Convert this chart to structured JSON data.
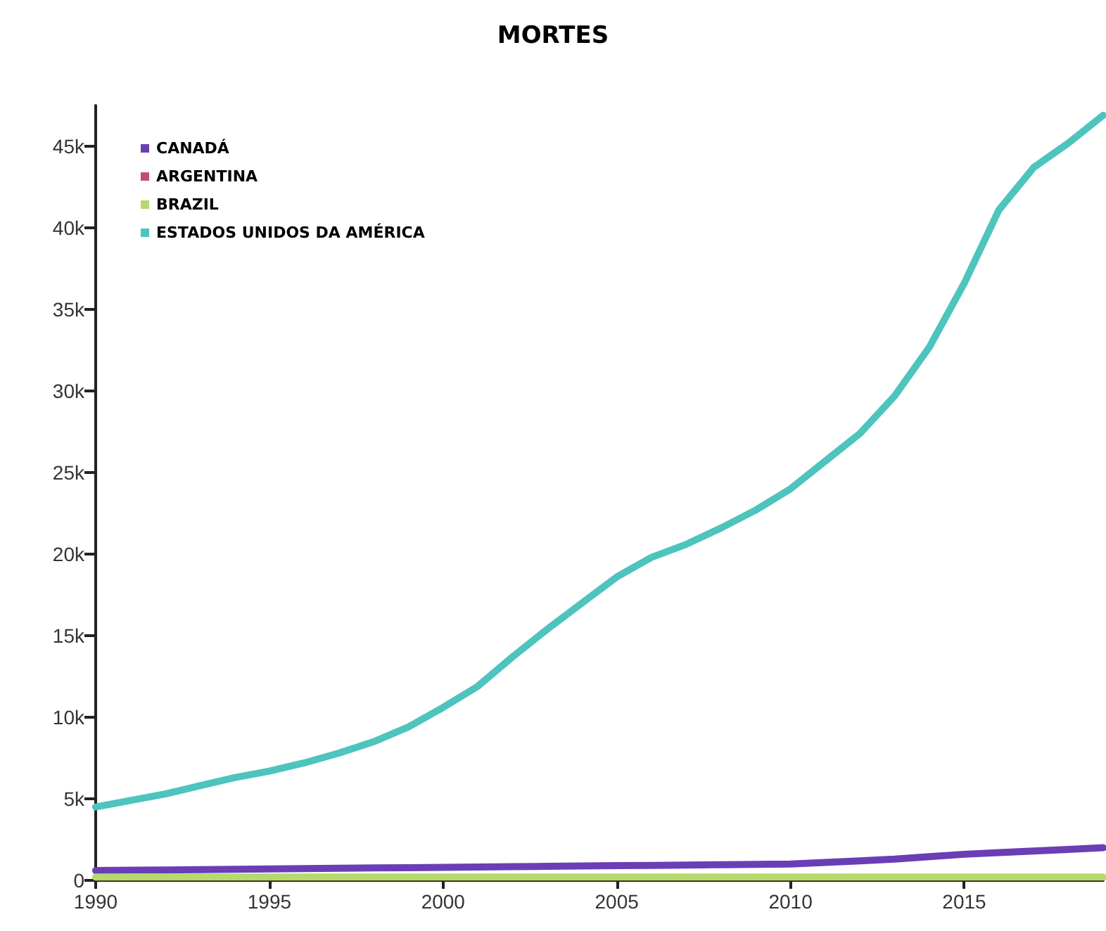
{
  "chart_data": {
    "type": "line",
    "title": "MORTES",
    "x": [
      1990,
      1991,
      1992,
      1993,
      1994,
      1995,
      1996,
      1997,
      1998,
      1999,
      2000,
      2001,
      2002,
      2003,
      2004,
      2005,
      2006,
      2007,
      2008,
      2009,
      2010,
      2011,
      2012,
      2013,
      2014,
      2015,
      2016,
      2017,
      2018,
      2019
    ],
    "series": [
      {
        "name": "CANADÁ",
        "color": "#6a3fb5",
        "values": [
          600,
          620,
          640,
          660,
          680,
          700,
          720,
          740,
          760,
          780,
          800,
          820,
          840,
          860,
          880,
          900,
          920,
          940,
          960,
          980,
          1000,
          1100,
          1200,
          1300,
          1450,
          1600,
          1700,
          1800,
          1900,
          2000
        ]
      },
      {
        "name": "ARGENTINA",
        "color": "#c0506e",
        "values": [
          null,
          null,
          null,
          null,
          null,
          null,
          null,
          null,
          null,
          null,
          null,
          null,
          null,
          null,
          null,
          null,
          null,
          null,
          null,
          null,
          null,
          null,
          null,
          null,
          null,
          null,
          null,
          null,
          null,
          null
        ]
      },
      {
        "name": "BRAZIL",
        "color": "#b5d96a",
        "values": [
          200,
          200,
          200,
          200,
          200,
          200,
          200,
          200,
          200,
          200,
          200,
          200,
          200,
          200,
          200,
          200,
          200,
          200,
          200,
          200,
          200,
          200,
          200,
          200,
          200,
          200,
          200,
          200,
          200,
          200
        ]
      },
      {
        "name": "ESTADOS UNIDOS DA AMÉRICA",
        "color": "#4dc4bd",
        "values": [
          4500,
          4900,
          5300,
          5800,
          6300,
          6700,
          7200,
          7800,
          8500,
          9400,
          10600,
          11900,
          13700,
          15400,
          17000,
          18600,
          19800,
          20600,
          21600,
          22700,
          24000,
          25700,
          27400,
          29700,
          32700,
          36600,
          41100,
          43700,
          45200,
          46900
        ]
      }
    ],
    "xlim": [
      1990,
      2019
    ],
    "xticks": [
      1990,
      1995,
      2000,
      2005,
      2010,
      2015
    ],
    "ylim": [
      0,
      47500
    ],
    "yticks": [
      0,
      {
        "value": 5000,
        "label": "5k"
      },
      {
        "value": 10000,
        "label": "10k"
      },
      {
        "value": 15000,
        "label": "15k"
      },
      {
        "value": 20000,
        "label": "20k"
      },
      {
        "value": 25000,
        "label": "25k"
      },
      {
        "value": 30000,
        "label": "30k"
      },
      {
        "value": 35000,
        "label": "35k"
      },
      {
        "value": 40000,
        "label": "40k"
      },
      {
        "value": 45000,
        "label": "45k"
      }
    ],
    "grid": false,
    "legend": "top left",
    "marker": "none",
    "line_style": "solid"
  }
}
